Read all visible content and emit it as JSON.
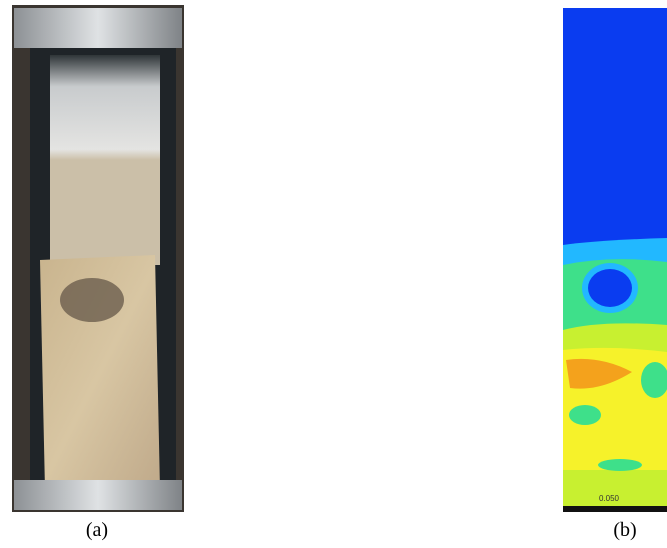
{
  "panels": [
    {
      "caption": "(a)"
    },
    {
      "caption": "(b)",
      "scale_label": "0.050"
    }
  ]
}
